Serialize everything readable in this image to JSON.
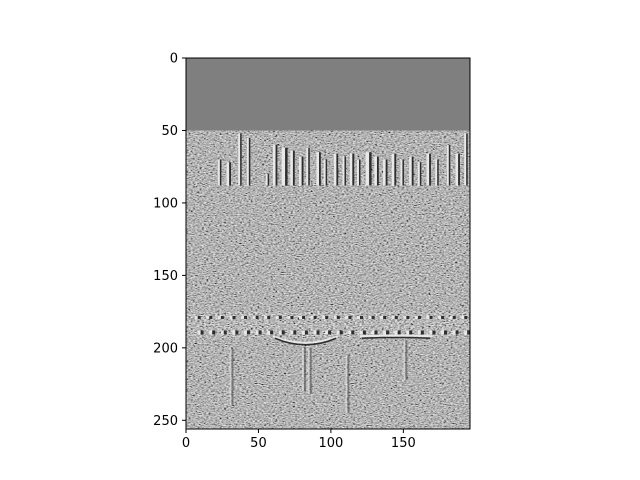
{
  "chart_data": {
    "type": "heatmap",
    "title": "",
    "xlabel": "",
    "ylabel": "",
    "image_size": {
      "width": 196,
      "height": 256
    },
    "colormap": "gray",
    "content": "grayscale edge-filtered image of a city skyline with a river and arched bridges",
    "xlim": [
      0,
      196
    ],
    "ylim": [
      256,
      0
    ],
    "x_ticks": [
      0,
      50,
      100,
      150
    ],
    "y_ticks": [
      0,
      50,
      100,
      150,
      200,
      250
    ],
    "grid": false,
    "legend": "none"
  },
  "colors": {
    "background": "#7f7f7f",
    "light_edge": "#e8e8e8",
    "dark_edge": "#2e2e2e"
  }
}
